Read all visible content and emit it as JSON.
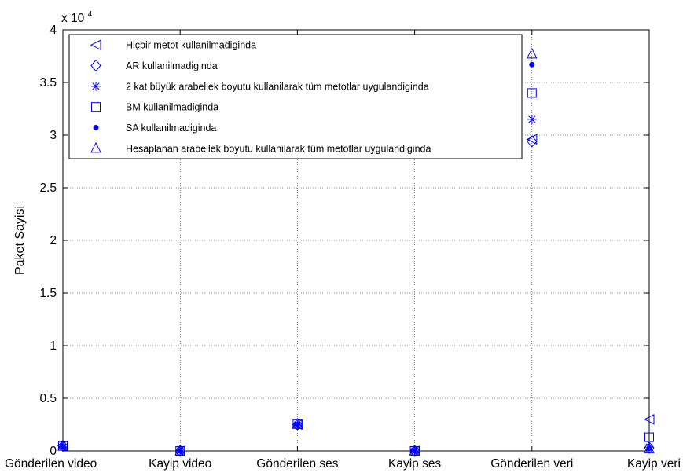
{
  "chart_data": {
    "type": "scatter",
    "title": "",
    "xlabel": "",
    "ylabel": "Paket Sayisi",
    "y_exponent_label": "x 10",
    "y_exponent_power": "4",
    "categories": [
      "Gönderilen video",
      "Kayip video",
      "Gönderilen ses",
      "Kayip ses",
      "Gönderilen veri",
      "Kayip veri"
    ],
    "yticks": [
      0,
      0.5,
      1,
      1.5,
      2,
      2.5,
      3,
      3.5,
      4
    ],
    "yticklabels": [
      "0",
      "0.5",
      "1",
      "1.5",
      "2",
      "2.5",
      "3",
      "3.5",
      "4"
    ],
    "ylim": [
      0,
      40000
    ],
    "grid": true,
    "legend_position": "top-left",
    "marker_color": "#0000ff",
    "series": [
      {
        "name": "Hiçbir metot  kullanilmadiginda",
        "marker": "triangle-left",
        "values": [
          500,
          0,
          2500,
          0,
          29600,
          3000
        ]
      },
      {
        "name": "AR kullanilmadiginda",
        "marker": "diamond",
        "values": [
          480,
          0,
          2500,
          0,
          29400,
          300
        ]
      },
      {
        "name": "2 kat büyük arabellek boyutu kullanilarak tüm metotlar uygulandiginda",
        "marker": "asterisk",
        "values": [
          350,
          0,
          2450,
          0,
          31500,
          350
        ]
      },
      {
        "name": "BM kullanilmadiginda",
        "marker": "square",
        "values": [
          480,
          0,
          2550,
          0,
          34000,
          1300
        ]
      },
      {
        "name": "SA kullanilmadiginda",
        "marker": "point",
        "values": [
          420,
          0,
          2500,
          0,
          36700,
          250
        ]
      },
      {
        "name": "Hesaplanan arabellek boyutu kullanilarak tüm metotlar uygulandiginda",
        "marker": "triangle-up",
        "values": [
          450,
          0,
          2550,
          0,
          37700,
          200
        ]
      }
    ]
  }
}
